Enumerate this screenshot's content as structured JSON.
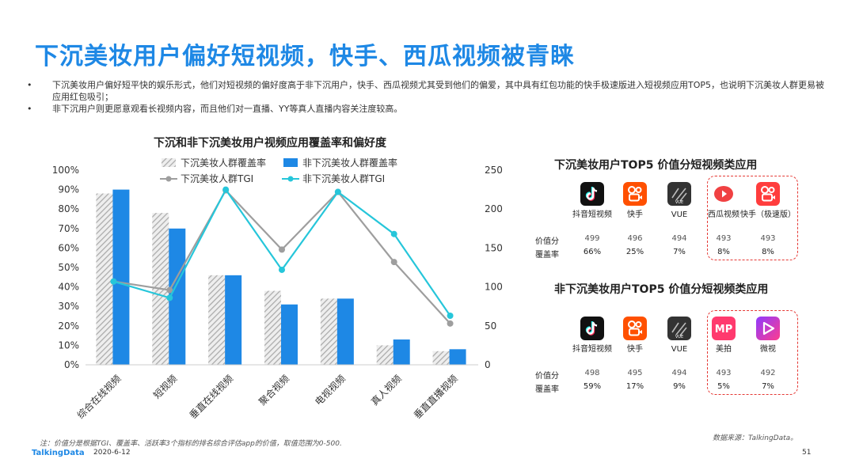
{
  "title": "下沉美妆用户偏好短视频，快手、西瓜视频被青睐",
  "bullets": [
    "下沉美妆用户偏好短平快的娱乐形式，他们对短视频的偏好度高于非下沉用户，快手、西瓜视频尤其受到他们的偏爱，其中具有红包功能的快手极速版进入短视频应用TOP5，也说明下沉美妆人群更易被应用红包吸引；",
    "非下沉用户则更愿意观看长视频内容，而且他们对一直播、YY等真人直播内容关注度较高。"
  ],
  "chart_data": {
    "type": "bar",
    "title": "下沉和非下沉美妆用户视频应用覆盖率和偏好度",
    "categories": [
      "综合在线视频",
      "短视频",
      "垂直在线视频",
      "聚合视频",
      "电视视频",
      "真人视频",
      "垂直直播视频"
    ],
    "series": [
      {
        "name": "下沉美妆人群覆盖率",
        "kind": "bar",
        "axis": "left",
        "pattern": "hatched-grey",
        "values": [
          88,
          78,
          46,
          38,
          34,
          10,
          7
        ]
      },
      {
        "name": "非下沉美妆人群覆盖率",
        "kind": "bar",
        "axis": "left",
        "color": "#1E88E5",
        "values": [
          90,
          70,
          46,
          31,
          34,
          13,
          8
        ]
      },
      {
        "name": "下沉美妆人群TGI",
        "kind": "line",
        "axis": "right",
        "color": "#9E9E9E",
        "values": [
          107,
          96,
          224,
          148,
          222,
          132,
          53
        ]
      },
      {
        "name": "非下沉美妆人群TGI",
        "kind": "line",
        "axis": "right",
        "color": "#26C6DA",
        "values": [
          107,
          86,
          225,
          122,
          222,
          168,
          63
        ]
      }
    ],
    "yleft": {
      "ticks": [
        "0%",
        "10%",
        "20%",
        "30%",
        "40%",
        "50%",
        "60%",
        "70%",
        "80%",
        "90%",
        "100%"
      ],
      "range": [
        0,
        100
      ]
    },
    "yright": {
      "ticks": [
        "0",
        "50",
        "100",
        "150",
        "200",
        "250"
      ],
      "range": [
        0,
        250
      ]
    },
    "legend_position": "top"
  },
  "panel_top": {
    "title": "下沉美妆用户TOP5 价值分短视频类应用",
    "row_labels": [
      "价值分",
      "覆盖率"
    ],
    "apps": [
      {
        "name": "抖音短视频",
        "icon": "douyin-icon",
        "score": "499",
        "coverage": "66%",
        "highlight": false
      },
      {
        "name": "快手",
        "icon": "kuaishou-icon",
        "score": "496",
        "coverage": "25%",
        "highlight": false
      },
      {
        "name": "VUE",
        "icon": "vue-icon",
        "score": "494",
        "coverage": "7%",
        "highlight": false
      },
      {
        "name": "西瓜视频",
        "icon": "xigua-icon",
        "score": "493",
        "coverage": "8%",
        "highlight": true
      },
      {
        "name": "快手（极速版）",
        "icon": "kuaishou-lite-icon",
        "score": "493",
        "coverage": "8%",
        "highlight": true
      }
    ]
  },
  "panel_bottom": {
    "title": "非下沉美妆用户TOP5 价值分短视频类应用",
    "row_labels": [
      "价值分",
      "覆盖率"
    ],
    "apps": [
      {
        "name": "抖音短视频",
        "icon": "douyin-icon",
        "score": "498",
        "coverage": "59%",
        "highlight": false
      },
      {
        "name": "快手",
        "icon": "kuaishou-icon",
        "score": "495",
        "coverage": "17%",
        "highlight": false
      },
      {
        "name": "VUE",
        "icon": "vue-icon",
        "score": "494",
        "coverage": "9%",
        "highlight": false
      },
      {
        "name": "美拍",
        "icon": "meipai-icon",
        "score": "493",
        "coverage": "5%",
        "highlight": true
      },
      {
        "name": "微视",
        "icon": "weishi-icon",
        "score": "492",
        "coverage": "7%",
        "highlight": true
      }
    ]
  },
  "footnote": "注：价值分是根据TGI、覆盖率、活跃率3个指标的排名综合评估app的价值，取值范围为0-500.",
  "source": "数据来源：TalkingData。",
  "logo": "TalkingData",
  "date": "2020-6-12",
  "page_number": "51"
}
